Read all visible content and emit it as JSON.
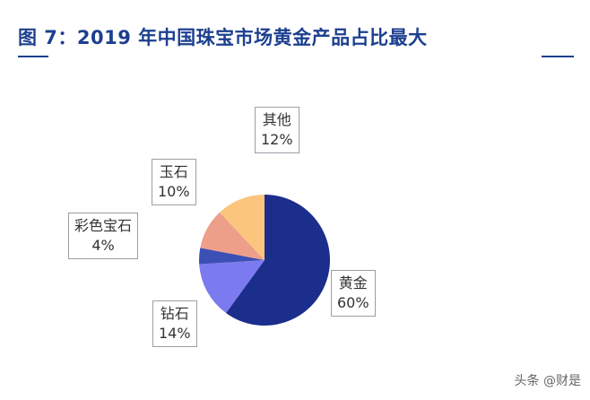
{
  "title": "图 7：2019 年中国珠宝市场黄金产品占比最大",
  "watermark": "头条 @财是",
  "chart_data": {
    "type": "pie",
    "title": "图 7：2019 年中国珠宝市场黄金产品占比最大",
    "slices": [
      {
        "name": "黄金",
        "value": 60,
        "label": "60%",
        "color": "#1b2e8c"
      },
      {
        "name": "钻石",
        "value": 14,
        "label": "14%",
        "color": "#7b7bef"
      },
      {
        "name": "彩色宝石",
        "value": 4,
        "label": "4%",
        "color": "#3c4fb5"
      },
      {
        "name": "玉石",
        "value": 10,
        "label": "10%",
        "color": "#ee9f8a"
      },
      {
        "name": "其他",
        "value": 12,
        "label": "12%",
        "color": "#fbc57e"
      }
    ],
    "legend": "none",
    "labels": "callout boxes"
  }
}
